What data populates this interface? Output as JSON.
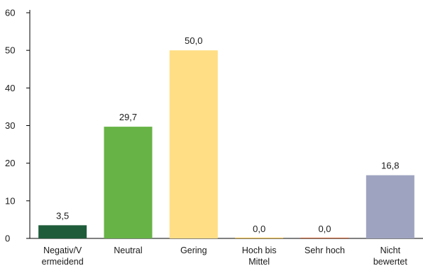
{
  "chart_data": {
    "type": "bar",
    "title": "",
    "xlabel": "",
    "ylabel": "",
    "categories": [
      [
        "Negativ/V",
        "ermeidend"
      ],
      [
        "Neutral"
      ],
      [
        "Gering"
      ],
      [
        "Hoch bis",
        "Mittel"
      ],
      [
        "Sehr hoch"
      ],
      [
        "Nicht",
        "bewertet"
      ]
    ],
    "values": [
      3.5,
      29.7,
      50.0,
      0.0,
      0.0,
      16.8
    ],
    "value_labels": [
      "3,5",
      "29,7",
      "50,0",
      "0,0",
      "0,0",
      "16,8"
    ],
    "colors": [
      "#1e5c3a",
      "#67b346",
      "#ffde85",
      "#e8b430",
      "#c65a2b",
      "#9ea3c0"
    ],
    "ylim": [
      0,
      60
    ],
    "yticks": [
      0,
      10,
      20,
      30,
      40,
      50,
      60
    ],
    "ytick_labels": [
      "0",
      "10",
      "20",
      "30",
      "40",
      "50",
      "60"
    ],
    "grid": false,
    "legend": "none"
  }
}
